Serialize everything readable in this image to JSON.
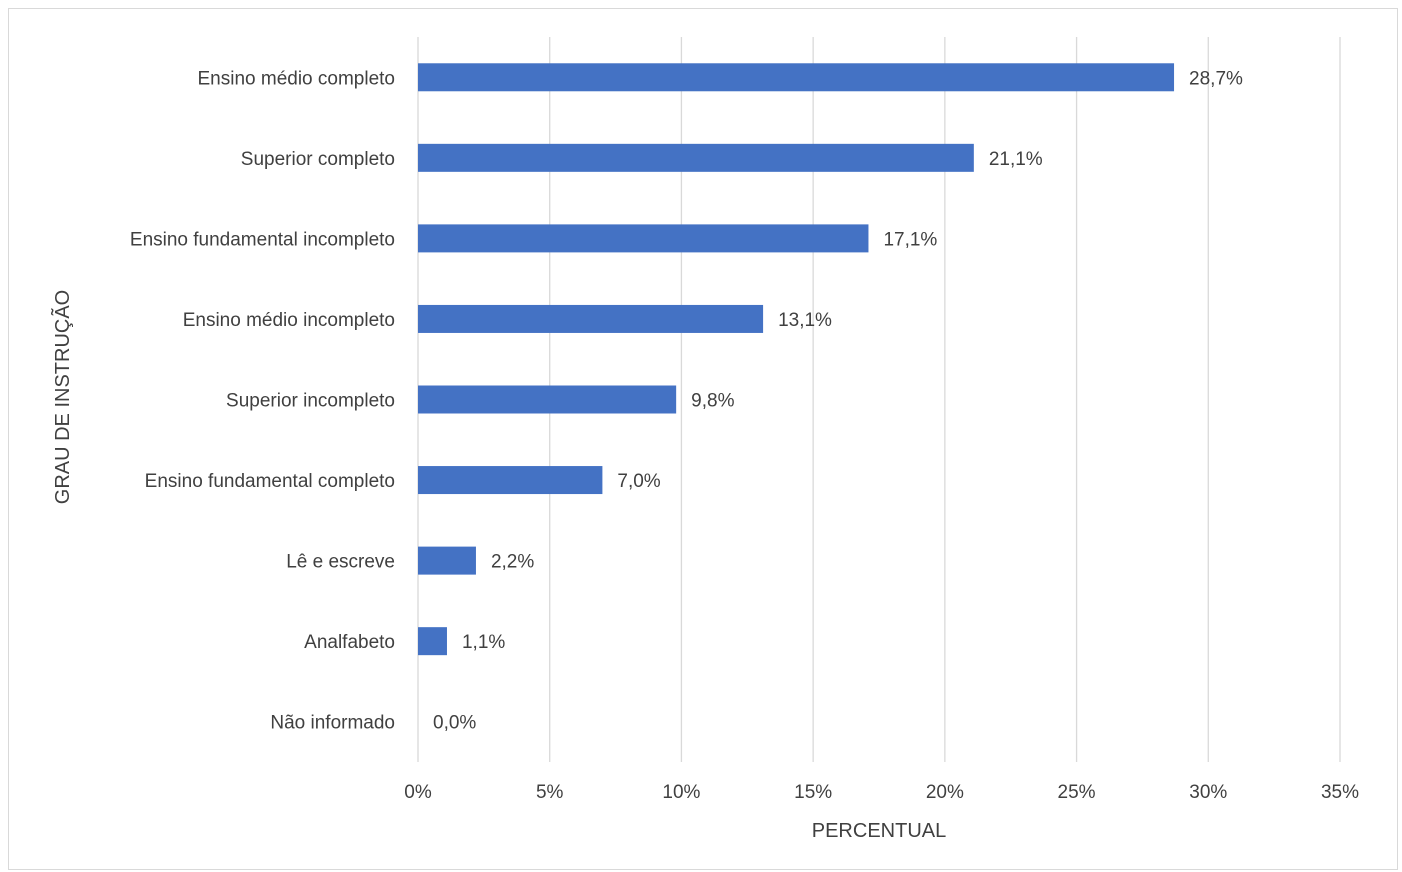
{
  "chart_data": {
    "type": "bar",
    "orientation": "horizontal",
    "title": "",
    "xlabel": "PERCENTUAL",
    "ylabel": "GRAU DE INSTRUÇÃO",
    "categories": [
      "Ensino médio completo",
      "Superior completo",
      "Ensino fundamental incompleto",
      "Ensino médio incompleto",
      "Superior incompleto",
      "Ensino fundamental completo",
      "Lê e escreve",
      "Analfabeto",
      "Não informado"
    ],
    "values": [
      28.7,
      21.1,
      17.1,
      13.1,
      9.8,
      7.0,
      2.2,
      1.1,
      0.0
    ],
    "data_labels": [
      "28,7%",
      "21,1%",
      "17,1%",
      "13,1%",
      "9,8%",
      "7,0%",
      "2,2%",
      "1,1%",
      "0,0%"
    ],
    "xlim": [
      0,
      35
    ],
    "x_ticks": [
      0,
      5,
      10,
      15,
      20,
      25,
      30,
      35
    ],
    "x_tick_labels": [
      "0%",
      "5%",
      "10%",
      "15%",
      "20%",
      "25%",
      "30%",
      "35%"
    ],
    "grid": "vertical",
    "legend": "none",
    "colors": {
      "bar": "#4472c4",
      "grid": "#d9d9d9",
      "text": "#404040",
      "frame": "#d9d9d9"
    }
  }
}
